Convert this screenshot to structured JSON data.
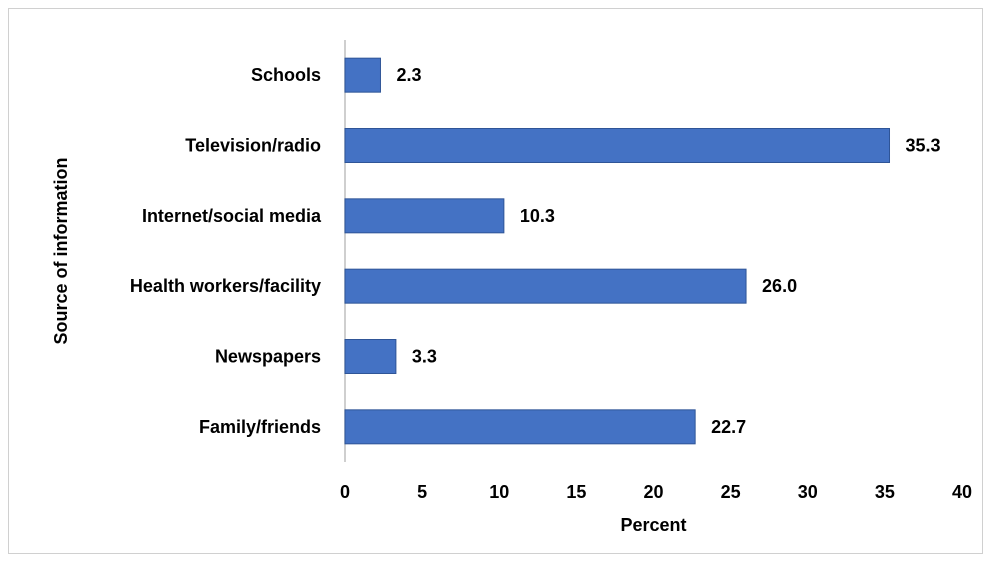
{
  "chart_data": {
    "type": "bar",
    "orientation": "horizontal",
    "categories": [
      "Schools",
      "Television/radio",
      "Internet/social media",
      "Health workers/facility",
      "Newspapers",
      "Family/friends"
    ],
    "values": [
      2.3,
      35.3,
      10.3,
      26.0,
      3.3,
      22.7
    ],
    "value_labels": [
      "2.3",
      "35.3",
      "10.3",
      "26.0",
      "3.3",
      "22.7"
    ],
    "xlabel": "Percent",
    "ylabel": "Source of information",
    "xlim": [
      0,
      40
    ],
    "xticks": [
      0,
      5,
      10,
      15,
      20,
      25,
      30,
      35,
      40
    ],
    "grid": false,
    "legend": "none",
    "bar_color": "#4472C4",
    "bar_edge_color": "#2F5597"
  }
}
